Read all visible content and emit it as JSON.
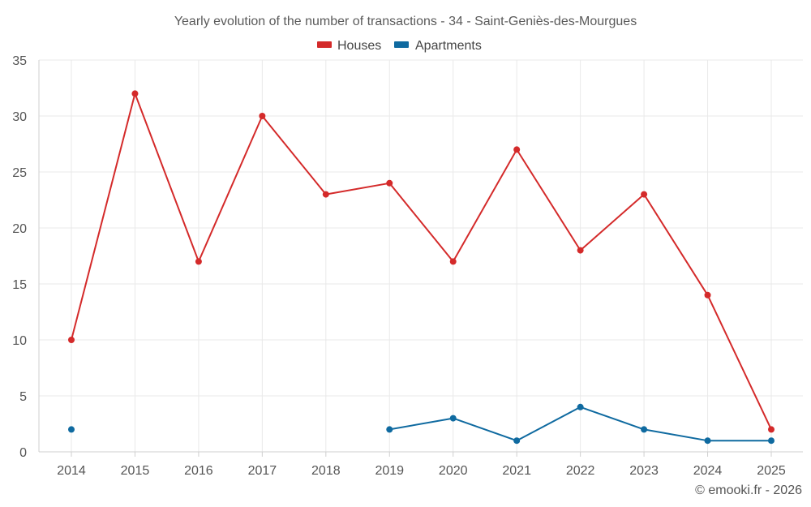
{
  "chart_data": {
    "type": "line",
    "title": "Yearly evolution of the number of transactions - 34 - Saint-Geniès-des-Mourgues",
    "categories": [
      "2014",
      "2015",
      "2016",
      "2017",
      "2018",
      "2019",
      "2020",
      "2021",
      "2022",
      "2023",
      "2024",
      "2025"
    ],
    "series": [
      {
        "name": "Houses",
        "color": "#d42a2a",
        "values": [
          10,
          32,
          17,
          30,
          23,
          24,
          17,
          27,
          18,
          23,
          14,
          2
        ]
      },
      {
        "name": "Apartments",
        "color": "#0f6aa0",
        "values": [
          2,
          null,
          null,
          null,
          null,
          2,
          3,
          1,
          4,
          2,
          1,
          1
        ]
      }
    ],
    "ylim": [
      0,
      35
    ],
    "yticks": [
      0,
      5,
      10,
      15,
      20,
      25,
      30,
      35
    ],
    "xlabel": "",
    "ylabel": "",
    "legend": "top-center",
    "grid": true
  },
  "footer": {
    "copyright": "© emooki.fr - 2026"
  }
}
